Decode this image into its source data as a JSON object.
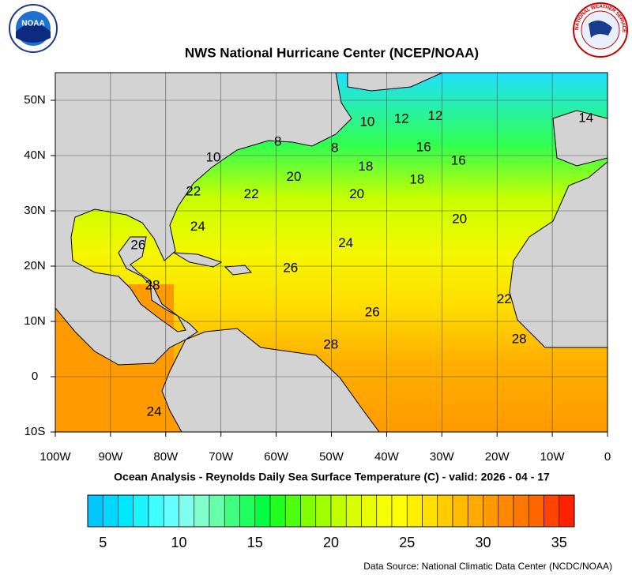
{
  "header": {
    "title": "NWS National Hurricane Center (NCEP/NOAA)",
    "noaa_logo": "NOAA",
    "nws_logo": "NATIONAL WEATHER SERVICE"
  },
  "map": {
    "lonlim": [
      -100,
      0
    ],
    "latlim": [
      -10,
      55
    ],
    "grid": true,
    "lonticks": [
      {
        "value": -100,
        "label": "100W"
      },
      {
        "value": -90,
        "label": "90W"
      },
      {
        "value": -80,
        "label": "80W"
      },
      {
        "value": -70,
        "label": "70W"
      },
      {
        "value": -60,
        "label": "60W"
      },
      {
        "value": -50,
        "label": "50W"
      },
      {
        "value": -40,
        "label": "40W"
      },
      {
        "value": -30,
        "label": "30W"
      },
      {
        "value": -20,
        "label": "20W"
      },
      {
        "value": -10,
        "label": "10W"
      },
      0
    ],
    "latticks": [
      {
        "value": 50,
        "label": "50N"
      },
      {
        "value": 40,
        "label": "40N"
      },
      {
        "value": 30,
        "label": "30N"
      },
      {
        "value": 20,
        "label": "20N"
      },
      {
        "value": 10,
        "label": "10N"
      },
      0,
      {
        "value": -10,
        "label": "10S"
      }
    ],
    "contour_labels": [
      {
        "value": 10,
        "lon": -71.4,
        "lat": 39.6
      },
      {
        "value": 8,
        "lon": -59.7,
        "lat": 42.4
      },
      {
        "value": 8,
        "lon": -49.4,
        "lat": 41.3
      },
      {
        "value": 10,
        "lon": -43.5,
        "lat": 46
      },
      {
        "value": 12,
        "lon": -37.3,
        "lat": 46.6
      },
      {
        "value": 12,
        "lon": -31.2,
        "lat": 47.1
      },
      {
        "value": 14,
        "lon": -3.9,
        "lat": 46.7
      },
      {
        "value": 16,
        "lon": -33.3,
        "lat": 41.4
      },
      {
        "value": 16,
        "lon": -27,
        "lat": 39
      },
      {
        "value": 18,
        "lon": -43.8,
        "lat": 37.9
      },
      {
        "value": 18,
        "lon": -34.5,
        "lat": 35.6
      },
      {
        "value": 20,
        "lon": -56.8,
        "lat": 36.1
      },
      {
        "value": 20,
        "lon": -45.4,
        "lat": 32.9
      },
      {
        "value": 20,
        "lon": -26.8,
        "lat": 28.4
      },
      {
        "value": 22,
        "lon": -75,
        "lat": 33.4
      },
      {
        "value": 22,
        "lon": -64.5,
        "lat": 32.9
      },
      {
        "value": 22,
        "lon": -18.7,
        "lat": 13.9
      },
      {
        "value": 24,
        "lon": -74.2,
        "lat": 27.1
      },
      {
        "value": 24,
        "lon": -47.4,
        "lat": 24.1
      },
      {
        "value": 24,
        "lon": -82.1,
        "lat": -6.4
      },
      {
        "value": 26,
        "lon": -85,
        "lat": 23.7
      },
      {
        "value": 26,
        "lon": -57.4,
        "lat": 19.6
      },
      {
        "value": 26,
        "lon": -42.6,
        "lat": 11.6
      },
      {
        "value": 28,
        "lon": -82.4,
        "lat": 16.4
      },
      {
        "value": 28,
        "lon": -50.1,
        "lat": 5.7
      },
      {
        "value": 28,
        "lon": -16,
        "lat": 6.7
      }
    ]
  },
  "caption": "Ocean Analysis - Reynolds Daily Sea Surface Temperature (C) - valid: 2026 - 04 - 17",
  "colorbar": {
    "bins": [
      4,
      5,
      6,
      7,
      8,
      9,
      10,
      11,
      12,
      13,
      14,
      15,
      16,
      17,
      18,
      19,
      20,
      21,
      22,
      23,
      24,
      25,
      26,
      27,
      28,
      29,
      30,
      31,
      32,
      33,
      34,
      35,
      36
    ],
    "colors": [
      "#00c8ff",
      "#00d8ff",
      "#00e8ff",
      "#1af5ff",
      "#40ffff",
      "#66ffff",
      "#80ffee",
      "#80ffcc",
      "#66ffaa",
      "#40ff80",
      "#20ff60",
      "#00ff40",
      "#20ff20",
      "#50ff10",
      "#80ff00",
      "#a0ff00",
      "#c0ff00",
      "#d8ff00",
      "#e8ff00",
      "#f8ff00",
      "#ffff00",
      "#fff000",
      "#ffe000",
      "#ffcc00",
      "#ffbb00",
      "#ffaa00",
      "#ff9900",
      "#ff8800",
      "#ff7700",
      "#ff6600",
      "#ff4400",
      "#ff2200"
    ],
    "ticks": [
      5,
      10,
      15,
      20,
      25,
      30,
      35
    ]
  },
  "source": "Data Source: National Climatic Data Center (NCDC/NOAA)"
}
